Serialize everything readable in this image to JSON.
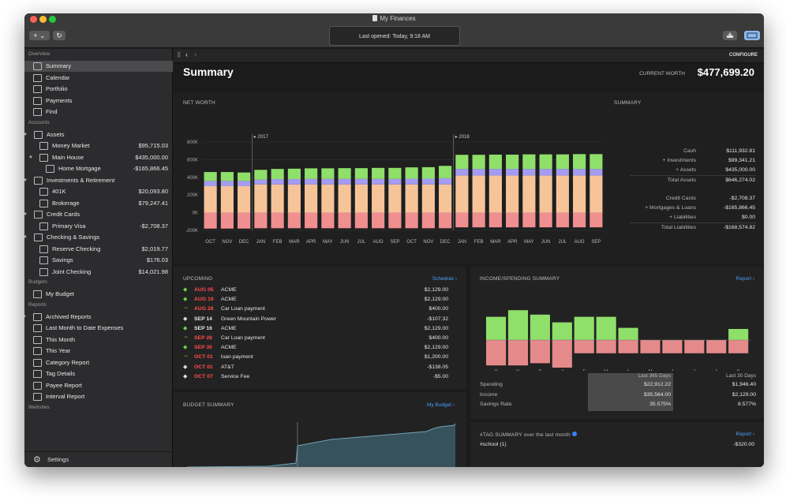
{
  "window": {
    "title": "My Finances",
    "status": "Last opened: Today, 9:18 AM",
    "add_label": "+ ⌄",
    "refresh_label": "↻"
  },
  "sidebar": {
    "overview_label": "Overview",
    "overview": [
      {
        "label": "Summary",
        "icon": "bank-icon"
      },
      {
        "label": "Calendar",
        "icon": "calendar-icon"
      },
      {
        "label": "Portfolio",
        "icon": "portfolio-icon"
      },
      {
        "label": "Payments",
        "icon": "payments-icon"
      },
      {
        "label": "Find",
        "icon": "search-icon"
      }
    ],
    "accounts_label": "Accounts",
    "accounts": [
      {
        "label": "Assets",
        "amount": "",
        "level": 0,
        "group": true
      },
      {
        "label": "Money Market",
        "amount": "$95,715.03",
        "level": 1
      },
      {
        "label": "Main House",
        "amount": "$435,000.00",
        "level": 1,
        "group": true
      },
      {
        "label": "Home Mortgage",
        "amount": "-$165,866.45",
        "level": 2
      },
      {
        "label": "Investments & Retirement",
        "amount": "",
        "level": 0,
        "group": true
      },
      {
        "label": "401K",
        "amount": "$20,093.80",
        "level": 1
      },
      {
        "label": "Brokerage",
        "amount": "$79,247.41",
        "level": 1
      },
      {
        "label": "Credit Cards",
        "amount": "",
        "level": 0,
        "group": true
      },
      {
        "label": "Primary Visa",
        "amount": "-$2,708.37",
        "level": 1
      },
      {
        "label": "Checking & Savings",
        "amount": "",
        "level": 0,
        "group": true
      },
      {
        "label": "Reserve Checking",
        "amount": "$2,019.77",
        "level": 1
      },
      {
        "label": "Savings",
        "amount": "$176.03",
        "level": 1
      },
      {
        "label": "Joint Checking",
        "amount": "$14,021.98",
        "level": 1
      }
    ],
    "budgets_label": "Budgets",
    "budgets": [
      {
        "label": "My Budget"
      }
    ],
    "reports_label": "Reports",
    "reports": [
      {
        "label": "Archived Reports",
        "folder": true
      },
      {
        "label": "Last Month to Date Expenses"
      },
      {
        "label": "This Month"
      },
      {
        "label": "This Year"
      },
      {
        "label": "Category Report"
      },
      {
        "label": "Tag Details"
      },
      {
        "label": "Payee Report"
      },
      {
        "label": "Interval Report"
      }
    ],
    "websites_label": "Websites",
    "settings_label": "Settings"
  },
  "content": {
    "configure": "CONFIGURE",
    "page_title": "Summary",
    "current_worth_label": "CURRENT WORTH",
    "current_worth": "$477,699.20"
  },
  "net_worth": {
    "title": "NET WORTH",
    "chart_data": {
      "type": "bar",
      "stacked": true,
      "categories": [
        "OCT",
        "NOV",
        "DEC",
        "JAN",
        "FEB",
        "MAR",
        "APR",
        "MAY",
        "JUN",
        "JUL",
        "AUG",
        "SEP",
        "OCT",
        "NOV",
        "DEC",
        "JAN",
        "FEB",
        "MAR",
        "APR",
        "MAY",
        "JUN",
        "JUL",
        "AUG",
        "SEP"
      ],
      "y_ticks": [
        "800K",
        "600K",
        "400K",
        "200K",
        "0K",
        "-200K"
      ],
      "ylim": [
        -200000,
        800000
      ],
      "year_markers": [
        {
          "label": "2017",
          "after_index": 2
        },
        {
          "label": "2018",
          "after_index": 14
        }
      ],
      "series": [
        {
          "color": "#f08f8f",
          "values": [
            -180000,
            -180000,
            -180000,
            -176000,
            -176000,
            -176000,
            -176000,
            -176000,
            -176000,
            -176000,
            -176000,
            -176000,
            -176000,
            -176000,
            -176000,
            -166000,
            -166000,
            -166000,
            -166000,
            -166000,
            -166000,
            -166000,
            -166000,
            -166000
          ]
        },
        {
          "color": "#f7c49a",
          "values": [
            300000,
            300000,
            300000,
            320000,
            320000,
            320000,
            320000,
            320000,
            320000,
            320000,
            320000,
            320000,
            320000,
            320000,
            320000,
            420000,
            420000,
            420000,
            420000,
            420000,
            420000,
            420000,
            420000,
            420000
          ]
        },
        {
          "color": "#a59cf2",
          "values": [
            60000,
            60000,
            60000,
            55000,
            60000,
            60000,
            62000,
            62000,
            62000,
            62000,
            62000,
            62000,
            65000,
            65000,
            70000,
            75000,
            75000,
            75000,
            75000,
            75000,
            75000,
            75000,
            75000,
            75000
          ]
        },
        {
          "color": "#8fe06a",
          "values": [
            100000,
            100000,
            95000,
            110000,
            115000,
            118000,
            120000,
            120000,
            122000,
            122000,
            125000,
            125000,
            128000,
            130000,
            140000,
            160000,
            160000,
            162000,
            162000,
            165000,
            165000,
            165000,
            168000,
            168000
          ]
        }
      ]
    }
  },
  "summary": {
    "title": "SUMMARY",
    "rows": [
      {
        "label": "Cash",
        "value": "$111,932.81"
      },
      {
        "label": "+ Investments",
        "value": "$99,341.21"
      },
      {
        "label": "+ Assets",
        "value": "$435,000.00"
      },
      {
        "label": "Total Assets",
        "value": "$646,274.02"
      },
      {
        "label": "Credit Cards",
        "value": "-$2,708.37"
      },
      {
        "label": "+ Mortgages & Loans",
        "value": "-$165,866.45"
      },
      {
        "label": "+ Liabilities",
        "value": "$0.00"
      },
      {
        "label": "Total Liabilities",
        "value": "-$168,574.82"
      }
    ]
  },
  "upcoming": {
    "title": "UPCOMING",
    "link": "Schedule ›",
    "rows": [
      {
        "icon": "green",
        "date": "AUG 05",
        "overdue": true,
        "payee": "ACME",
        "amount": "$2,129.00"
      },
      {
        "icon": "green",
        "date": "AUG 19",
        "overdue": true,
        "payee": "ACME",
        "amount": "$2,129.00"
      },
      {
        "icon": "orange",
        "date": "AUG 28",
        "overdue": true,
        "payee": "Car  Loan payment",
        "amount": "$400.00"
      },
      {
        "icon": "white",
        "date": "SEP 14",
        "overdue": false,
        "payee": "Green Mountain Power",
        "amount": "-$107.32"
      },
      {
        "icon": "green",
        "date": "SEP 16",
        "overdue": false,
        "payee": "ACME",
        "amount": "$2,129.00"
      },
      {
        "icon": "orange",
        "date": "SEP 28",
        "overdue": true,
        "payee": "Car  Loan payment",
        "amount": "$400.00"
      },
      {
        "icon": "green",
        "date": "SEP 30",
        "overdue": true,
        "payee": "ACME",
        "amount": "$2,129.00"
      },
      {
        "icon": "orange",
        "date": "OCT 01",
        "overdue": true,
        "payee": "loan payment",
        "amount": "$1,200.00"
      },
      {
        "icon": "white",
        "date": "OCT 01",
        "overdue": true,
        "payee": "AT&T",
        "amount": "-$138.05"
      },
      {
        "icon": "white",
        "date": "OCT 07",
        "overdue": true,
        "payee": "Service Fee",
        "amount": "-$5.00"
      }
    ]
  },
  "income_spending": {
    "title": "INCOME/SPENDING SUMMARY",
    "link": "Report ›",
    "chart_data": {
      "type": "bar",
      "categories": [
        "O",
        "N",
        "D",
        "J",
        "F",
        "M",
        "A",
        "M",
        "J",
        "J",
        "A",
        "S"
      ],
      "income": [
        2.1,
        2.7,
        2.3,
        1.6,
        2.1,
        2.1,
        1.1,
        0,
        0,
        0,
        0,
        1.0
      ],
      "spending": [
        -2.3,
        -2.3,
        -2.1,
        -2.5,
        -1.2,
        -1.2,
        -1.2,
        -1.2,
        -1.2,
        -1.2,
        -1.2,
        -1.2
      ],
      "income_color": "#8fe06a",
      "spending_color": "#e58a8a"
    },
    "col1_header": "Last 365 Days",
    "col2_header": "Last 30 Days",
    "rows": [
      {
        "label": "Spending",
        "v1": "$22,912.22",
        "v2": "$1,946.40"
      },
      {
        "label": "Income",
        "v1": "$35,564.00",
        "v2": "$2,129.00"
      },
      {
        "label": "Savings Rate",
        "v1": "35.575%",
        "v2": "8.577%"
      }
    ]
  },
  "budget_summary": {
    "title": "BUDGET SUMMARY",
    "link": "My Budget ›"
  },
  "tag_summary": {
    "title": "#TAG SUMMARY over the last month",
    "link": "Report ›",
    "rows": [
      {
        "tag": "#school (1)",
        "amount": "-$320.00"
      }
    ]
  }
}
